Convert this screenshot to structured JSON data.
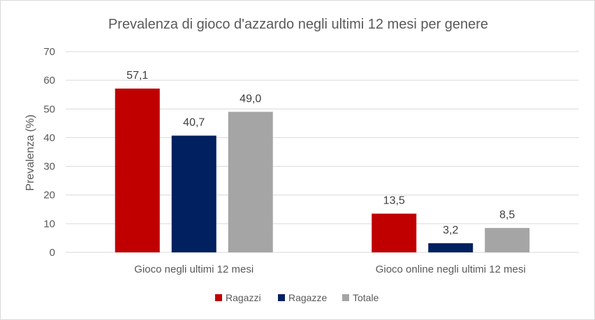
{
  "chart_data": {
    "type": "bar",
    "title": "Prevalenza di gioco d'azzardo negli ultimi 12 mesi per genere",
    "xlabel": "",
    "ylabel": "Prevalenza (%)",
    "ylim": [
      0,
      70
    ],
    "yticks": [
      0,
      10,
      20,
      30,
      40,
      50,
      60,
      70
    ],
    "grid": true,
    "legend_position": "bottom",
    "categories": [
      "Gioco negli ultimi 12 mesi",
      "Gioco online negli ultimi 12 mesi"
    ],
    "series": [
      {
        "name": "Ragazzi",
        "color": "#c00000",
        "values": [
          57.1,
          13.5
        ],
        "labels": [
          "57,1",
          "13,5"
        ]
      },
      {
        "name": "Ragazze",
        "color": "#002060",
        "values": [
          40.7,
          3.2
        ],
        "labels": [
          "40,7",
          "3,2"
        ]
      },
      {
        "name": "Totale",
        "color": "#a5a5a5",
        "values": [
          49.0,
          8.5
        ],
        "labels": [
          "49,0",
          "8,5"
        ]
      }
    ]
  }
}
